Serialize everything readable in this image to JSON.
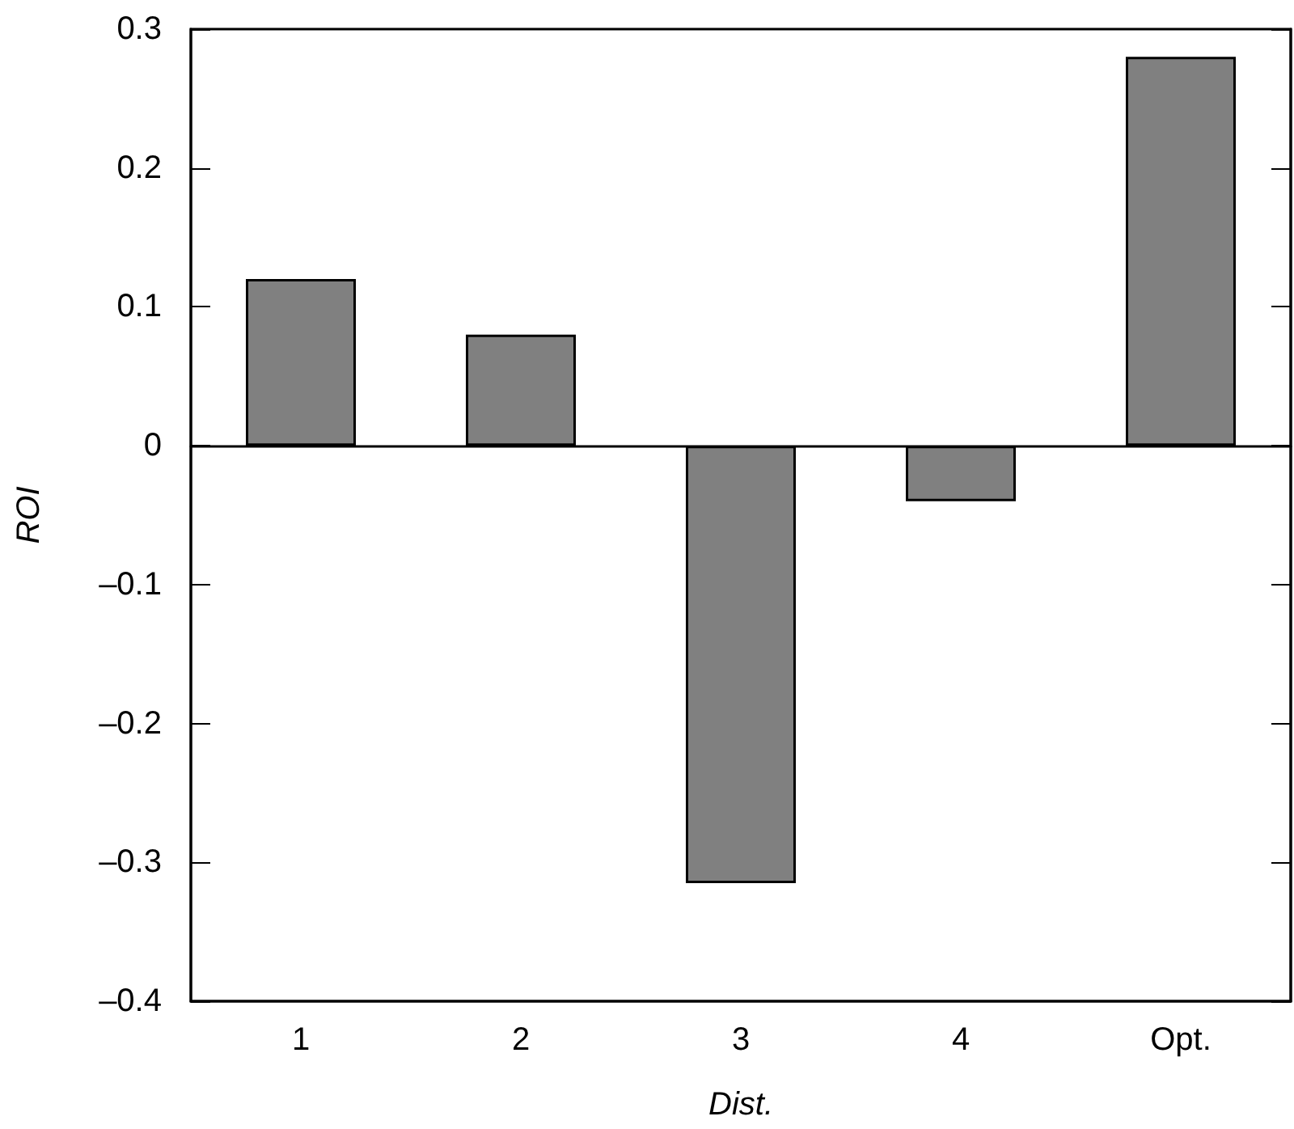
{
  "chart_data": {
    "type": "bar",
    "xlabel": "Dist.",
    "ylabel": "ROI",
    "categories": [
      "1",
      "2",
      "3",
      "4",
      "Opt."
    ],
    "values": [
      0.12,
      0.08,
      -0.315,
      -0.04,
      0.28
    ],
    "color": "#808080",
    "ylim": [
      -0.4,
      0.3
    ],
    "yticks": [
      {
        "value": -0.4,
        "label": "–0.4"
      },
      {
        "value": -0.3,
        "label": "–0.3"
      },
      {
        "value": -0.2,
        "label": "–0.2"
      },
      {
        "value": -0.1,
        "label": "–0.1"
      },
      0,
      0.1,
      0.2,
      0.3
    ]
  }
}
